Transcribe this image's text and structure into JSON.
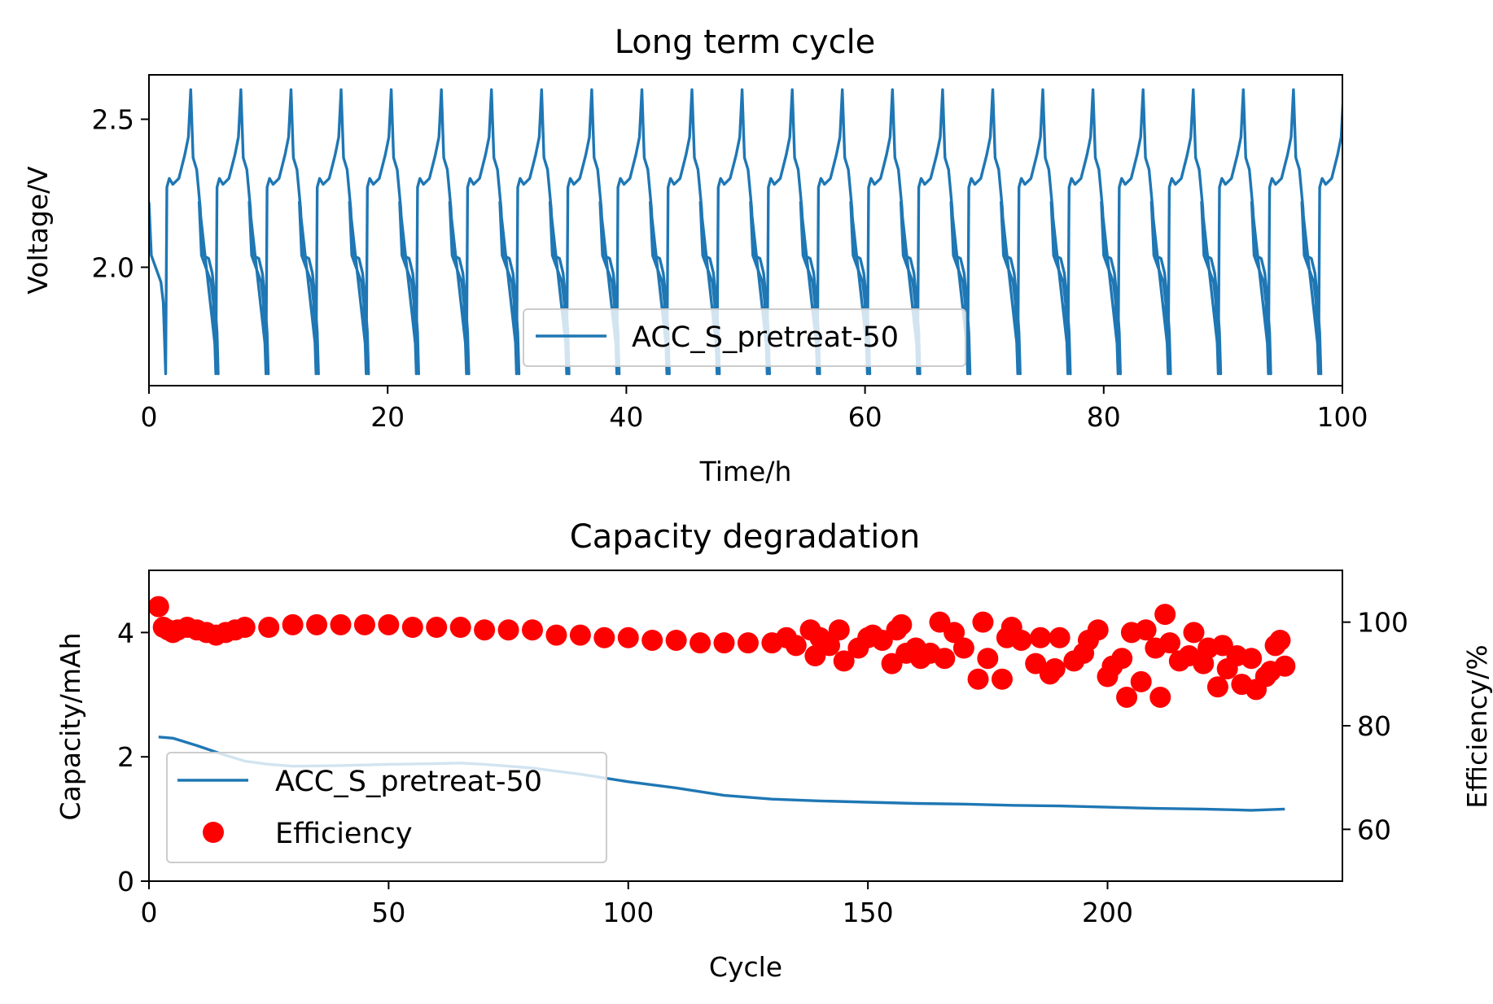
{
  "chart_data": [
    {
      "type": "line",
      "title": "Long term cycle",
      "xlabel": "Time/h",
      "ylabel": "Voltage/V",
      "xlim": [
        0,
        100
      ],
      "ylim": [
        1.6,
        2.65
      ],
      "xticks": [
        0,
        20,
        40,
        60,
        80,
        100
      ],
      "yticks": [
        2.0,
        2.5
      ],
      "legend_position": "lower center",
      "grid": false,
      "series": [
        {
          "name": "ACC_S_pretreat-50",
          "color": "#1f77b4",
          "pattern": "periodic charge/discharge voltage profile, period ~4.2 h, max ~2.60 V, min ~1.64 V, plateaus ~2.30 V (charge) and ~2.02 V (discharge)",
          "period_h": 4.2,
          "x": [
            0,
            0.2,
            1.0,
            1.2,
            1.4,
            1.5,
            1.7,
            2.0,
            2.5,
            3.0,
            3.3,
            3.5,
            3.7,
            4.0,
            4.3,
            4.5,
            5.0,
            5.3,
            5.5,
            5.7,
            5.8
          ],
          "y": [
            2.22,
            2.04,
            1.95,
            1.88,
            1.64,
            2.27,
            2.3,
            2.28,
            2.3,
            2.38,
            2.44,
            2.6,
            2.37,
            2.33,
            2.2,
            2.04,
            2.03,
            1.98,
            1.9,
            1.78,
            1.64
          ]
        }
      ],
      "legend": [
        "ACC_S_pretreat-50"
      ]
    },
    {
      "type": "line",
      "title": "Capacity degradation",
      "xlabel": "Cycle",
      "ylabel": "Capacity/mAh",
      "y2label": "Efficiency/%",
      "xlim": [
        0,
        249
      ],
      "ylim": [
        0,
        5
      ],
      "y2lim": [
        50,
        110
      ],
      "xticks": [
        0,
        50,
        100,
        150,
        200
      ],
      "yticks": [
        0,
        2,
        4
      ],
      "y2ticks": [
        60,
        80,
        100
      ],
      "legend_position": "lower left",
      "grid": false,
      "series": [
        {
          "name": "ACC_S_pretreat-50",
          "axis": "left",
          "color": "#1f77b4",
          "x": [
            2,
            5,
            10,
            15,
            20,
            25,
            30,
            40,
            50,
            60,
            65,
            70,
            80,
            90,
            95,
            100,
            110,
            120,
            130,
            140,
            150,
            160,
            170,
            180,
            190,
            200,
            210,
            220,
            230,
            237
          ],
          "y": [
            2.32,
            2.3,
            2.18,
            2.05,
            1.93,
            1.88,
            1.85,
            1.86,
            1.88,
            1.89,
            1.9,
            1.88,
            1.82,
            1.72,
            1.66,
            1.6,
            1.5,
            1.38,
            1.32,
            1.29,
            1.27,
            1.25,
            1.24,
            1.22,
            1.21,
            1.19,
            1.17,
            1.16,
            1.14,
            1.16
          ]
        },
        {
          "name": "Efficiency",
          "axis": "right",
          "color": "#ff0000",
          "marker": "circle",
          "x": [
            2,
            3,
            4,
            5,
            6,
            8,
            10,
            12,
            14,
            16,
            18,
            20,
            25,
            30,
            35,
            40,
            45,
            50,
            55,
            60,
            65,
            70,
            75,
            80,
            85,
            90,
            95,
            100,
            105,
            110,
            115,
            120,
            125,
            130,
            133,
            135,
            138,
            139,
            140,
            142,
            144,
            145,
            148,
            150,
            151,
            153,
            155,
            156,
            157,
            158,
            160,
            161,
            163,
            165,
            166,
            168,
            170,
            173,
            174,
            175,
            178,
            179,
            180,
            182,
            185,
            186,
            188,
            189,
            190,
            193,
            195,
            196,
            198,
            200,
            201,
            203,
            204,
            205,
            207,
            208,
            210,
            211,
            212,
            213,
            215,
            217,
            218,
            220,
            221,
            223,
            224,
            225,
            227,
            228,
            230,
            231,
            233,
            234,
            235,
            236,
            237
          ],
          "y": [
            103,
            99,
            98.5,
            98,
            98.5,
            99,
            98.5,
            98,
            97.5,
            98,
            98.5,
            99,
            99,
            99.5,
            99.5,
            99.5,
            99.5,
            99.5,
            99,
            99,
            99,
            98.5,
            98.5,
            98.5,
            97.5,
            97.5,
            97,
            97,
            96.5,
            96.5,
            96,
            96,
            96,
            96,
            97,
            95.5,
            98.5,
            93.5,
            97,
            95.5,
            98.5,
            92.5,
            95,
            97,
            97.5,
            96.5,
            92,
            98.5,
            99.5,
            94,
            95,
            93,
            94,
            100,
            93,
            98,
            95,
            89,
            100,
            93,
            89,
            97,
            99,
            96.5,
            92,
            97,
            90,
            91,
            97,
            92.5,
            94,
            96.5,
            98.5,
            89.5,
            91.5,
            93,
            85.5,
            98,
            88.5,
            98.5,
            95,
            85.5,
            101.5,
            96,
            92.5,
            93.5,
            98,
            92,
            95,
            87.5,
            95.5,
            91,
            93.5,
            88,
            93,
            87,
            89.5,
            90.5,
            95.5,
            96.5,
            91.5
          ]
        }
      ],
      "legend": [
        "ACC_S_pretreat-50",
        "Efficiency"
      ]
    }
  ]
}
